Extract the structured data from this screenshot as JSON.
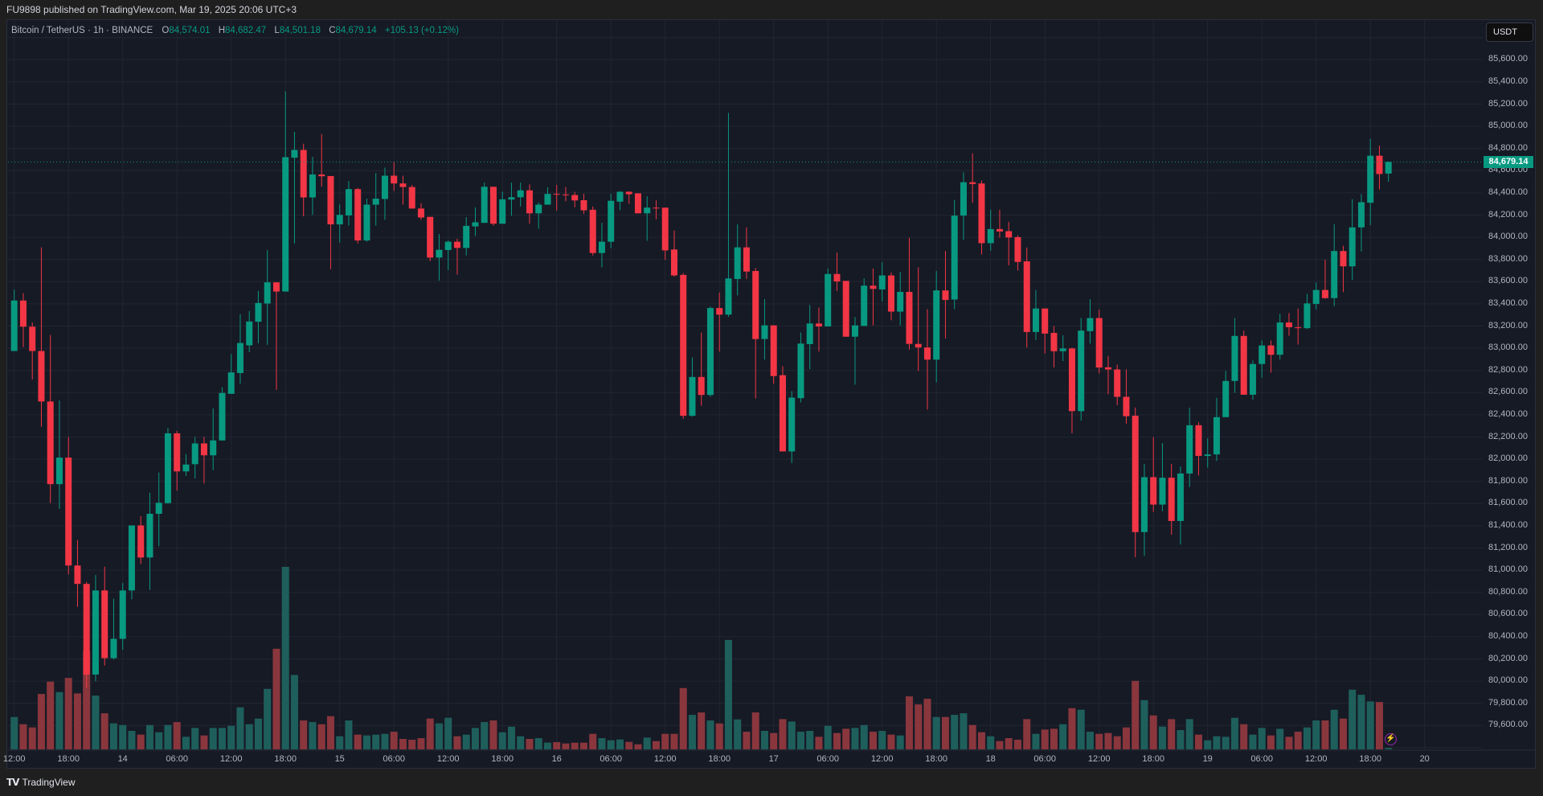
{
  "header": {
    "publish_text": "FU9898 published on TradingView.com, Mar 19, 2025 20:06 UTC+3"
  },
  "legend": {
    "symbol": "Bitcoin / TetherUS · 1h · BINANCE",
    "o_label": "O",
    "o": "84,574.01",
    "h_label": "H",
    "h": "84,682.47",
    "l_label": "L",
    "l": "84,501.18",
    "c_label": "C",
    "c": "84,679.14",
    "change": "+105.13 (+0.12%)"
  },
  "currency_button": "USDT",
  "last_price_label": "84,679.14",
  "footer": {
    "brand": "TradingView",
    "logo_icon": "tradingview-logo-icon"
  },
  "colors": {
    "up": "#089981",
    "down": "#f23645",
    "up_volume": "#1e5f5c",
    "down_volume": "#8a363d",
    "background": "#161a25",
    "grid": "#222632"
  },
  "chart_data": {
    "type": "candlestick",
    "title": "Bitcoin / TetherUS · 1h · BINANCE",
    "interval": "1h",
    "first_bar": "Mar 13 12:00",
    "ylim": [
      79450,
      85800
    ],
    "y_ticks": [
      "85,600.00",
      "85,400.00",
      "85,200.00",
      "85,000.00",
      "84,800.00",
      "84,600.00",
      "84,400.00",
      "84,200.00",
      "84,000.00",
      "83,800.00",
      "83,600.00",
      "83,400.00",
      "83,200.00",
      "83,000.00",
      "82,800.00",
      "82,600.00",
      "82,400.00",
      "82,200.00",
      "82,000.00",
      "81,800.00",
      "81,600.00",
      "81,400.00",
      "81,200.00",
      "81,000.00",
      "80,800.00",
      "80,600.00",
      "80,400.00",
      "80,200.00",
      "80,000.00",
      "79,800.00",
      "79,600.00"
    ],
    "x_ticks": [
      {
        "label": "12:00",
        "bar": 0
      },
      {
        "label": "18:00",
        "bar": 6
      },
      {
        "label": "14",
        "bar": 12
      },
      {
        "label": "06:00",
        "bar": 18
      },
      {
        "label": "12:00",
        "bar": 24
      },
      {
        "label": "18:00",
        "bar": 30
      },
      {
        "label": "15",
        "bar": 36
      },
      {
        "label": "06:00",
        "bar": 42
      },
      {
        "label": "12:00",
        "bar": 48
      },
      {
        "label": "18:00",
        "bar": 54
      },
      {
        "label": "16",
        "bar": 60
      },
      {
        "label": "06:00",
        "bar": 66
      },
      {
        "label": "12:00",
        "bar": 72
      },
      {
        "label": "18:00",
        "bar": 78
      },
      {
        "label": "17",
        "bar": 84
      },
      {
        "label": "06:00",
        "bar": 90
      },
      {
        "label": "12:00",
        "bar": 96
      },
      {
        "label": "18:00",
        "bar": 102
      },
      {
        "label": "18",
        "bar": 108
      },
      {
        "label": "06:00",
        "bar": 114
      },
      {
        "label": "12:00",
        "bar": 120
      },
      {
        "label": "18:00",
        "bar": 126
      },
      {
        "label": "19",
        "bar": 132
      },
      {
        "label": "06:00",
        "bar": 138
      },
      {
        "label": "12:00",
        "bar": 144
      },
      {
        "label": "18:00",
        "bar": 150
      },
      {
        "label": "20",
        "bar": 156
      }
    ],
    "last_price": 84679.14,
    "volume_units": "relative",
    "columns": [
      "open",
      "high",
      "low",
      "close",
      "volume"
    ],
    "candles": [
      [
        82975,
        83529,
        82975,
        83430,
        121
      ],
      [
        83430,
        83497,
        83010,
        83194,
        94
      ],
      [
        83194,
        83232,
        82718,
        82975,
        82
      ],
      [
        82975,
        83909,
        82292,
        82520,
        207
      ],
      [
        82520,
        83119,
        81604,
        81775,
        253
      ],
      [
        81775,
        82530,
        81551,
        82014,
        214
      ],
      [
        82014,
        82201,
        80962,
        81042,
        267
      ],
      [
        81042,
        81270,
        80670,
        80876,
        209
      ],
      [
        80876,
        80895,
        79939,
        80059,
        367
      ],
      [
        80059,
        80956,
        79998,
        80817,
        201
      ],
      [
        80817,
        81031,
        80140,
        80207,
        135
      ],
      [
        80207,
        80742,
        80193,
        80381,
        97
      ],
      [
        80381,
        80884,
        80282,
        80817,
        91
      ],
      [
        80817,
        81403,
        80737,
        81403,
        69
      ],
      [
        81403,
        81486,
        81055,
        81114,
        55
      ],
      [
        81114,
        81698,
        80822,
        81508,
        91
      ],
      [
        81508,
        81880,
        81216,
        81607,
        64
      ],
      [
        81604,
        82281,
        81599,
        82233,
        91
      ],
      [
        82233,
        82255,
        81717,
        81890,
        102
      ],
      [
        81890,
        82046,
        81848,
        81952,
        47
      ],
      [
        81955,
        82201,
        81826,
        82142,
        80
      ],
      [
        82142,
        82201,
        81781,
        82035,
        52
      ],
      [
        82035,
        82458,
        81901,
        82169,
        80
      ],
      [
        82169,
        82648,
        82166,
        82597,
        80
      ],
      [
        82589,
        82948,
        82589,
        82782,
        88
      ],
      [
        82777,
        83307,
        82680,
        83047,
        157
      ],
      [
        83026,
        83336,
        82964,
        83241,
        94
      ],
      [
        83239,
        83516,
        83045,
        83408,
        115
      ],
      [
        83403,
        83885,
        83031,
        83594,
        226
      ],
      [
        83594,
        83594,
        82625,
        83511,
        376
      ],
      [
        83511,
        85314,
        83511,
        84722,
        682
      ],
      [
        84717,
        84951,
        83944,
        84787,
        278
      ],
      [
        84787,
        84843,
        84189,
        84359,
        108
      ],
      [
        84359,
        84725,
        84202,
        84566,
        102
      ],
      [
        84566,
        84929,
        84458,
        84550,
        94
      ],
      [
        84552,
        84552,
        83712,
        84116,
        124
      ],
      [
        84116,
        84297,
        83952,
        84202,
        49
      ],
      [
        84197,
        84507,
        84105,
        84434,
        108
      ],
      [
        84434,
        84445,
        83944,
        83971,
        55
      ],
      [
        83971,
        84348,
        83960,
        84294,
        52
      ],
      [
        84294,
        84579,
        84105,
        84348,
        55
      ],
      [
        84345,
        84628,
        84157,
        84555,
        58
      ],
      [
        84555,
        84679,
        84418,
        84485,
        66
      ],
      [
        84485,
        84555,
        84294,
        84453,
        39
      ],
      [
        84453,
        84472,
        84259,
        84259,
        36
      ],
      [
        84259,
        84307,
        84157,
        84178,
        42
      ],
      [
        84184,
        84184,
        83785,
        83817,
        115
      ],
      [
        83817,
        84030,
        83610,
        83887,
        97
      ],
      [
        83885,
        83971,
        83704,
        83960,
        118
      ],
      [
        83960,
        83987,
        83664,
        83904,
        49
      ],
      [
        83904,
        84181,
        83836,
        84103,
        55
      ],
      [
        84098,
        84270,
        84011,
        84135,
        80
      ],
      [
        84130,
        84493,
        84130,
        84455,
        102
      ],
      [
        84455,
        84455,
        84105,
        84122,
        108
      ],
      [
        84122,
        84410,
        84122,
        84342,
        64
      ],
      [
        84340,
        84493,
        84194,
        84361,
        85
      ],
      [
        84361,
        84493,
        84278,
        84423,
        49
      ],
      [
        84423,
        84477,
        84122,
        84216,
        39
      ],
      [
        84216,
        84315,
        84076,
        84294,
        42
      ],
      [
        84294,
        84450,
        84294,
        84391,
        25
      ],
      [
        84391,
        84472,
        84240,
        84386,
        27
      ],
      [
        84386,
        84453,
        84324,
        84381,
        22
      ],
      [
        84381,
        84410,
        84270,
        84332,
        25
      ],
      [
        84334,
        84391,
        84210,
        84243,
        25
      ],
      [
        84248,
        84278,
        83836,
        83858,
        58
      ],
      [
        83858,
        84130,
        83729,
        83960,
        42
      ],
      [
        83960,
        84391,
        83901,
        84329,
        34
      ],
      [
        84321,
        84415,
        84243,
        84410,
        37
      ],
      [
        84410,
        84415,
        84302,
        84388,
        28
      ],
      [
        84396,
        84396,
        84216,
        84216,
        19
      ],
      [
        84216,
        84369,
        83968,
        84267,
        44
      ],
      [
        84267,
        84334,
        84162,
        84262,
        31
      ],
      [
        84267,
        84267,
        83796,
        83882,
        58
      ],
      [
        83890,
        84062,
        83645,
        83656,
        58
      ],
      [
        83661,
        83677,
        82364,
        82391,
        229
      ],
      [
        82391,
        82916,
        82383,
        82741,
        129
      ],
      [
        82741,
        83142,
        82482,
        82579,
        138
      ],
      [
        82579,
        83376,
        82563,
        83362,
        108
      ],
      [
        83362,
        83502,
        82970,
        83303,
        97
      ],
      [
        83303,
        85120,
        83282,
        83629,
        409
      ],
      [
        83624,
        84116,
        83476,
        83909,
        112
      ],
      [
        83909,
        84089,
        83624,
        83691,
        66
      ],
      [
        83696,
        83723,
        82547,
        83083,
        138
      ],
      [
        83083,
        83443,
        82897,
        83206,
        69
      ],
      [
        83206,
        83206,
        82679,
        82749,
        61
      ],
      [
        82757,
        82838,
        82070,
        82070,
        113
      ],
      [
        82070,
        82614,
        81965,
        82555,
        104
      ],
      [
        82550,
        83142,
        82512,
        83042,
        66
      ],
      [
        83037,
        83389,
        82811,
        83223,
        69
      ],
      [
        83223,
        83368,
        82970,
        83196,
        47
      ],
      [
        83196,
        83718,
        83196,
        83669,
        88
      ],
      [
        83669,
        83863,
        83516,
        83602,
        61
      ],
      [
        83607,
        83607,
        83104,
        83104,
        77
      ],
      [
        83104,
        83282,
        82671,
        83206,
        80
      ],
      [
        83201,
        83629,
        83201,
        83564,
        91
      ],
      [
        83564,
        83718,
        83206,
        83535,
        66
      ],
      [
        83530,
        83777,
        83422,
        83656,
        69
      ],
      [
        83656,
        83683,
        83252,
        83330,
        55
      ],
      [
        83330,
        83688,
        83206,
        83508,
        52
      ],
      [
        83508,
        83995,
        82988,
        83039,
        198
      ],
      [
        83039,
        83729,
        82794,
        83007,
        168
      ],
      [
        83007,
        83352,
        82447,
        82897,
        189
      ],
      [
        82897,
        83696,
        82692,
        83521,
        121
      ],
      [
        83521,
        83877,
        83088,
        83435,
        121
      ],
      [
        83439,
        84337,
        83353,
        84195,
        129
      ],
      [
        84195,
        84585,
        83977,
        84496,
        135
      ],
      [
        84496,
        84757,
        84310,
        84480,
        91
      ],
      [
        84485,
        84512,
        83845,
        83947,
        64
      ],
      [
        83947,
        84249,
        83880,
        84074,
        49
      ],
      [
        84074,
        84249,
        83996,
        84052,
        31
      ],
      [
        84055,
        84138,
        83746,
        83998,
        42
      ],
      [
        84001,
        84017,
        83700,
        83778,
        36
      ],
      [
        83783,
        83907,
        83006,
        83146,
        113
      ],
      [
        83146,
        83525,
        83073,
        83358,
        58
      ],
      [
        83358,
        83358,
        82952,
        83132,
        74
      ],
      [
        83138,
        83199,
        82826,
        82973,
        77
      ],
      [
        82973,
        83116,
        82885,
        82998,
        94
      ],
      [
        82998,
        83005,
        82234,
        82433,
        154
      ],
      [
        82433,
        83272,
        82347,
        83159,
        148
      ],
      [
        83154,
        83442,
        83041,
        83272,
        66
      ],
      [
        83272,
        83347,
        82774,
        82826,
        58
      ],
      [
        82828,
        82930,
        82586,
        82809,
        61
      ],
      [
        82809,
        82852,
        82487,
        82562,
        49
      ],
      [
        82562,
        82809,
        82320,
        82387,
        82
      ],
      [
        82392,
        82465,
        81117,
        81343,
        256
      ],
      [
        81343,
        81957,
        81130,
        81838,
        184
      ],
      [
        81838,
        82199,
        81524,
        81591,
        127
      ],
      [
        81591,
        82145,
        81532,
        81833,
        85
      ],
      [
        81833,
        81957,
        81319,
        81443,
        113
      ],
      [
        81443,
        81935,
        81230,
        81871,
        72
      ],
      [
        81871,
        82465,
        81749,
        82306,
        113
      ],
      [
        82306,
        82333,
        81854,
        82029,
        55
      ],
      [
        82029,
        82188,
        81924,
        82043,
        34
      ],
      [
        82043,
        82554,
        81984,
        82379,
        49
      ],
      [
        82379,
        82796,
        82379,
        82705,
        47
      ],
      [
        82705,
        83272,
        82597,
        83111,
        118
      ],
      [
        83111,
        83159,
        82581,
        82581,
        94
      ],
      [
        82581,
        82890,
        82535,
        82858,
        55
      ],
      [
        82858,
        83070,
        82734,
        83025,
        80
      ],
      [
        83025,
        83070,
        82780,
        82941,
        52
      ],
      [
        82941,
        83310,
        82898,
        83232,
        77
      ],
      [
        83232,
        83318,
        83113,
        83189,
        47
      ],
      [
        83189,
        83358,
        83033,
        83181,
        66
      ],
      [
        83181,
        83490,
        83173,
        83404,
        82
      ],
      [
        83399,
        83592,
        83350,
        83525,
        108
      ],
      [
        83525,
        83798,
        83445,
        83452,
        108
      ],
      [
        83452,
        84118,
        83379,
        83876,
        148
      ],
      [
        83876,
        83924,
        83505,
        83738,
        115
      ],
      [
        83738,
        84343,
        83617,
        84089,
        223
      ],
      [
        84089,
        84389,
        83871,
        84316,
        204
      ],
      [
        84311,
        84887,
        84110,
        84735,
        179
      ],
      [
        84735,
        84827,
        84430,
        84570,
        177
      ],
      [
        84574.01,
        84682.47,
        84501.18,
        84679.14,
        5
      ]
    ]
  }
}
